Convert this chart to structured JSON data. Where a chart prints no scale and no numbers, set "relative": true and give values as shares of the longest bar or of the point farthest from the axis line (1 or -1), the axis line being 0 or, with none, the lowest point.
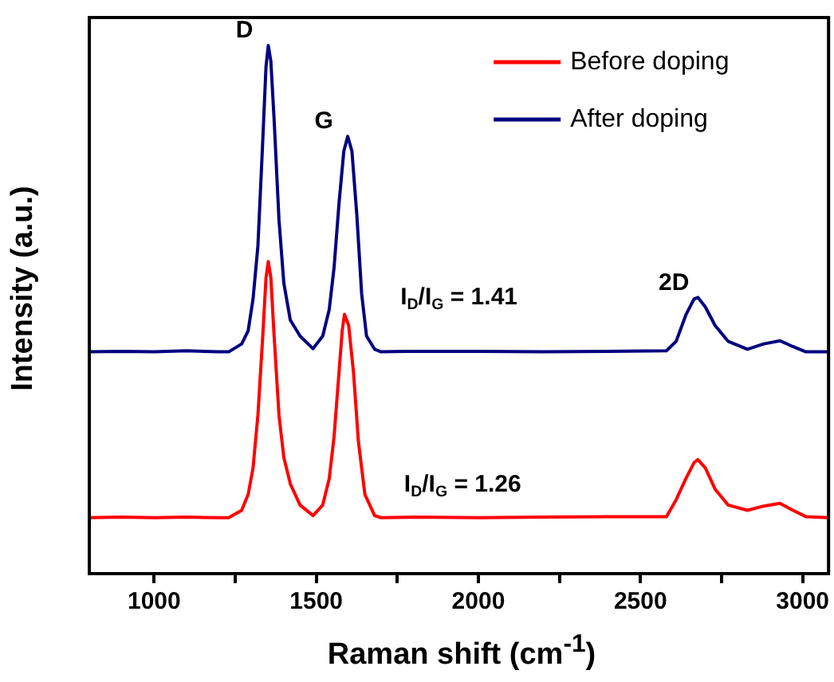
{
  "chart_data": {
    "type": "line",
    "relative": true,
    "xlabel": "Raman shift (cm$^{-1}$)",
    "ylabel": "Intensity (a.u.)",
    "xlim": [
      800,
      3080
    ],
    "xticks": [
      1000,
      {
        "value": 1250,
        "label": null
      },
      1500,
      {
        "value": 1750,
        "label": null
      },
      2000,
      {
        "value": 2250,
        "label": null
      },
      2500,
      {
        "value": 2750,
        "label": null
      },
      3000
    ],
    "legend": "top right",
    "grid": false,
    "marker": "none",
    "line_style": "solid",
    "series": [
      {
        "name": "Before doping",
        "color": "#ff0000",
        "x": [
          800,
          900,
          1000,
          1100,
          1200,
          1230,
          1270,
          1290,
          1305,
          1320,
          1335,
          1345,
          1352,
          1360,
          1370,
          1385,
          1400,
          1420,
          1450,
          1490,
          1520,
          1540,
          1555,
          1570,
          1580,
          1587,
          1600,
          1615,
          1630,
          1650,
          1680,
          1700,
          1800,
          2000,
          2200,
          2400,
          2580,
          2610,
          2640,
          2665,
          2677,
          2700,
          2730,
          2770,
          2830,
          2880,
          2930,
          2970,
          3010,
          3080
        ],
        "values": [
          0.106,
          0.107,
          0.106,
          0.107,
          0.106,
          0.106,
          0.12,
          0.15,
          0.2,
          0.3,
          0.45,
          0.56,
          0.591,
          0.56,
          0.45,
          0.3,
          0.22,
          0.17,
          0.13,
          0.11,
          0.13,
          0.18,
          0.26,
          0.38,
          0.46,
          0.491,
          0.47,
          0.38,
          0.25,
          0.15,
          0.11,
          0.106,
          0.107,
          0.106,
          0.107,
          0.108,
          0.108,
          0.14,
          0.18,
          0.21,
          0.216,
          0.2,
          0.16,
          0.13,
          0.12,
          0.128,
          0.133,
          0.12,
          0.108,
          0.106
        ]
      },
      {
        "name": "After doping",
        "color": "#000080",
        "x": [
          800,
          900,
          1000,
          1100,
          1200,
          1230,
          1270,
          1290,
          1305,
          1320,
          1335,
          1345,
          1352,
          1360,
          1370,
          1385,
          1400,
          1420,
          1450,
          1490,
          1520,
          1540,
          1555,
          1570,
          1585,
          1597,
          1610,
          1625,
          1640,
          1655,
          1680,
          1700,
          1800,
          2000,
          2200,
          2400,
          2580,
          2610,
          2640,
          2665,
          2677,
          2700,
          2730,
          2770,
          2830,
          2880,
          2930,
          2970,
          3010,
          3080
        ],
        "values": [
          0.42,
          0.421,
          0.42,
          0.422,
          0.42,
          0.42,
          0.435,
          0.46,
          0.52,
          0.62,
          0.82,
          0.96,
          1,
          0.97,
          0.86,
          0.67,
          0.55,
          0.48,
          0.45,
          0.426,
          0.45,
          0.5,
          0.58,
          0.7,
          0.8,
          0.828,
          0.8,
          0.68,
          0.53,
          0.45,
          0.425,
          0.42,
          0.421,
          0.421,
          0.42,
          0.421,
          0.422,
          0.44,
          0.49,
          0.52,
          0.523,
          0.505,
          0.47,
          0.44,
          0.425,
          0.435,
          0.441,
          0.43,
          0.42,
          0.42
        ]
      }
    ],
    "annotations": [
      {
        "text": "D",
        "x": 1352,
        "y": 1
      },
      {
        "text": "G",
        "x": 1597,
        "y": 0.828
      },
      {
        "text": "2D",
        "x": 2677,
        "y": 0.523
      },
      "I$_{D}$/I$_{G}$ = 1.41",
      "I$_{D}$/I$_{G}$ = 1.26"
    ]
  }
}
